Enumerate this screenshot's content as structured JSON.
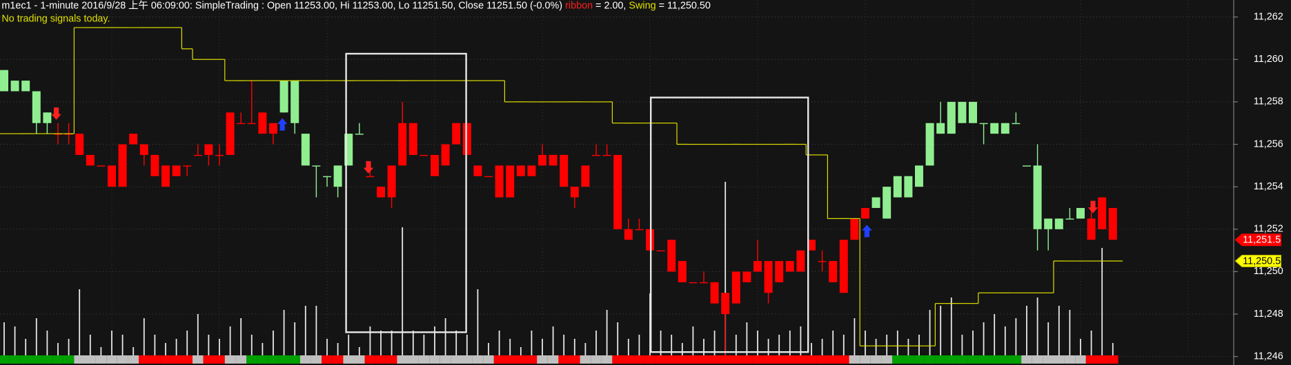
{
  "chart_data": {
    "type": "candlestick",
    "header": {
      "title": "m1ec1 - 1-minute 2016/9/28 上午 06:09:00: SimpleTrading : Open 11253.00, Hi 11253.00, Lo 11251.50, Close 11251.50 (-0.0%) ",
      "ribbon_name": "ribbon",
      "ribbon_value": " = 2.00, ",
      "swing_name": "Swing",
      "swing_value": " = 11,250.50",
      "signal_note": "No trading signals today."
    },
    "ylim": [
      11245.6,
      11262.8
    ],
    "yticks": [
      {
        "value": 11246,
        "label": "11,246"
      },
      {
        "value": 11248,
        "label": "11,248"
      },
      {
        "value": 11250,
        "label": "11,250"
      },
      {
        "value": 11252,
        "label": "11,252"
      },
      {
        "value": 11254,
        "label": "11,254"
      },
      {
        "value": 11256,
        "label": "11,256"
      },
      {
        "value": 11258,
        "label": "11,258"
      },
      {
        "value": 11260,
        "label": "11,260"
      },
      {
        "value": 11262,
        "label": "11,262"
      }
    ],
    "grid": true,
    "candles": {
      "open": [
        11258.5,
        11258.5,
        11258.5,
        11258.5,
        11257.5,
        11256.5,
        11256.5,
        11256.5,
        11255.5,
        11255,
        11255,
        11256,
        11256.5,
        11256,
        11255.5,
        11255,
        11255,
        11255,
        11255.5,
        11256,
        11255.5,
        11257.5,
        11257,
        11257,
        11257.5,
        11257,
        11257.5,
        11259,
        11256.5,
        11255,
        11254.5,
        11254,
        11255,
        11256.5,
        11254.5,
        11254,
        11255,
        11257,
        11257,
        11255.5,
        11255.5,
        11256,
        11257,
        11257,
        11255,
        11254.5,
        11255,
        11255,
        11255,
        11255,
        11255.5,
        11255.5,
        11255.5,
        11254,
        11255,
        11255.5,
        11255.5,
        11255.5,
        11252,
        11252,
        11252,
        11251,
        11251.5,
        11250.5,
        11249.5,
        11249.5,
        11249.5,
        11249,
        11250,
        11250,
        11250.5,
        11250.5,
        11250.5,
        11250.5,
        11251,
        11251.5,
        11250.5,
        11250.5,
        11251.5,
        11252.5,
        11252.5,
        11253,
        11252.5,
        11253.5,
        11253.5,
        11254,
        11255,
        11256.5,
        11256.5,
        11257,
        11257,
        11257,
        11256.5,
        11256.5,
        11257,
        11255,
        11252,
        11252,
        11252,
        11252.5,
        11252.5,
        11252.5,
        11253.5,
        11253
      ],
      "high": [
        11259.5,
        11259,
        11259,
        11258.5,
        11257.5,
        11257,
        11257,
        11256.5,
        11255.5,
        11255,
        11255,
        11256,
        11256.5,
        11256,
        11255.5,
        11255,
        11255,
        11255,
        11256,
        11256,
        11256,
        11257.5,
        11257.5,
        11259,
        11257.5,
        11257,
        11259,
        11259,
        11256.5,
        11255,
        11254.5,
        11255,
        11256.5,
        11257,
        11255,
        11254,
        11255,
        11258,
        11257,
        11255.5,
        11255.5,
        11256,
        11257,
        11257,
        11255,
        11254.5,
        11255,
        11255,
        11255,
        11255,
        11256,
        11255.5,
        11255.5,
        11254,
        11255,
        11256,
        11256,
        11255.5,
        11252.5,
        11252.5,
        11252,
        11251,
        11251.5,
        11250.5,
        11249.5,
        11250,
        11249.5,
        11249,
        11250,
        11250,
        11251.5,
        11250.5,
        11250.5,
        11250.5,
        11251,
        11251.5,
        11251,
        11250.5,
        11251.5,
        11252.5,
        11253,
        11253.5,
        11254,
        11254.5,
        11254.5,
        11255,
        11257,
        11258,
        11258,
        11258,
        11258,
        11257,
        11257,
        11257,
        11257.5,
        11255,
        11256,
        11252.5,
        11252.5,
        11253,
        11253,
        11253,
        11253.5,
        11253
      ],
      "low": [
        11258.5,
        11258.5,
        11258.5,
        11256.5,
        11256.5,
        11256,
        11256,
        11255.5,
        11255,
        11255,
        11254,
        11254,
        11256,
        11255,
        11254.5,
        11254,
        11254.5,
        11254.5,
        11255.5,
        11255,
        11255,
        11255.5,
        11257,
        11257,
        11256.5,
        11256,
        11257.5,
        11256.5,
        11255,
        11253.5,
        11254,
        11253.5,
        11255,
        11256.5,
        11254.5,
        11253.5,
        11253,
        11255,
        11255.5,
        11255.5,
        11254.5,
        11255,
        11256,
        11255.5,
        11254.5,
        11254.5,
        11253.5,
        11253.5,
        11254.5,
        11254.5,
        11255,
        11255,
        11254,
        11253,
        11254,
        11255.5,
        11255.5,
        11252,
        11251.5,
        11252,
        11251,
        11251,
        11250,
        11249.5,
        11249.5,
        11249.5,
        11248.5,
        11246,
        11248.5,
        11249.5,
        11250,
        11248.5,
        11249.5,
        11250,
        11250,
        11251,
        11250,
        11249.5,
        11249,
        11251.5,
        11252.5,
        11253,
        11252.5,
        11253.5,
        11253.5,
        11254,
        11255,
        11256.5,
        11256.5,
        11257,
        11257,
        11256,
        11256.5,
        11256.5,
        11257,
        11255,
        11251,
        11251,
        11252,
        11252.5,
        11252.5,
        11251.5,
        11252,
        11251.5
      ],
      "close": [
        11259.5,
        11259,
        11259,
        11257,
        11257,
        11256.5,
        11256.5,
        11255.5,
        11255,
        11255,
        11254,
        11254,
        11256,
        11255.5,
        11254.5,
        11254,
        11254.5,
        11255,
        11255.5,
        11255.5,
        11255.5,
        11255.5,
        11257,
        11257,
        11256.5,
        11256.5,
        11259,
        11257,
        11255,
        11255,
        11254.5,
        11255,
        11256.5,
        11256.5,
        11254.5,
        11253.5,
        11253.5,
        11255,
        11255.5,
        11255.5,
        11254.5,
        11255,
        11256,
        11255.5,
        11254.5,
        11254.5,
        11253.5,
        11253.5,
        11254.5,
        11254.5,
        11255,
        11255,
        11254,
        11253.5,
        11254,
        11255.5,
        11255.5,
        11252,
        11251.5,
        11252,
        11251,
        11251,
        11250,
        11249.5,
        11249.5,
        11249.5,
        11248.5,
        11248,
        11248.5,
        11249.5,
        11250,
        11249,
        11249.5,
        11250,
        11250,
        11251,
        11250.5,
        11249.5,
        11249,
        11251.5,
        11253,
        11253.5,
        11254,
        11254.5,
        11254.5,
        11255,
        11257,
        11257,
        11258,
        11258,
        11258,
        11257,
        11257,
        11257,
        11257,
        11255,
        11255,
        11252.5,
        11252.5,
        11252.5,
        11253,
        11251.5,
        11252,
        11251.5
      ]
    },
    "candle_state": "gggggrrrrrrrrrrrrrrrrrrrrrggggggggrrrrrrrrrrrrrrrrrrrrrrrrrrrrrrrrrrrrrrrrrrrrrrrggggggggggggggggggggrrr",
    "candle_colors": {
      "g": "#90ee90",
      "r": "#ff0000"
    },
    "ribbon_state": "gggggggwwwwwwrrrrrwrrwwgggggwwrrwwrrrwwwwwwwwwrrrrwwrrwwwrrrrrrrrrrrrrrrrrrrrrrwwwwggggggggggggwwwwwwrrr",
    "ribbon_colors": {
      "g": "#00a000",
      "w": "#c0c0c0",
      "r": "#ff0000"
    },
    "volume": [
      40,
      35,
      20,
      45,
      30,
      15,
      20,
      80,
      25,
      10,
      30,
      25,
      10,
      45,
      25,
      15,
      20,
      30,
      50,
      25,
      20,
      35,
      45,
      25,
      15,
      30,
      55,
      40,
      60,
      60,
      20,
      15,
      25,
      10,
      35,
      30,
      30,
      155,
      30,
      25,
      35,
      45,
      30,
      25,
      80,
      15,
      30,
      20,
      10,
      30,
      20,
      35,
      25,
      20,
      15,
      30,
      55,
      40,
      20,
      25,
      75,
      30,
      25,
      15,
      35,
      20,
      30,
      210,
      25,
      40,
      30,
      20,
      25,
      30,
      35,
      15,
      20,
      30,
      25,
      45,
      30,
      20,
      25,
      30,
      20,
      25,
      55,
      60,
      70,
      25,
      30,
      40,
      50,
      35,
      45,
      60,
      70,
      40,
      60,
      55,
      20,
      30,
      130,
      15
    ],
    "volume_color": "#e8e8e8",
    "swing": [
      11256.5,
      11256.5,
      11256.5,
      11256.5,
      11256.5,
      11256.5,
      11256.5,
      11261.5,
      11261.5,
      11261.5,
      11261.5,
      11261.5,
      11261.5,
      11261.5,
      11261.5,
      11261.5,
      11261.5,
      11260.5,
      11260,
      11260,
      11260,
      11259,
      11259,
      11259,
      11259,
      11259,
      11259,
      11259,
      11259,
      11259,
      11259,
      11259,
      11259,
      11259,
      11259,
      11259,
      11259,
      11259,
      11259,
      11259,
      11259,
      11259,
      11259,
      11259,
      11259,
      11259,
      11259,
      11258,
      11258,
      11258,
      11258,
      11258,
      11258,
      11258,
      11258,
      11258,
      11258,
      11257,
      11257,
      11257,
      11257,
      11257,
      11257,
      11256,
      11256,
      11256,
      11256,
      11256,
      11256,
      11256,
      11256,
      11256,
      11256,
      11256,
      11256,
      11255.5,
      11255.5,
      11252.5,
      11252.5,
      11252.5,
      11246.5,
      11246.5,
      11246.5,
      11246.5,
      11246.5,
      11246.5,
      11246.5,
      11248.5,
      11248.5,
      11248.5,
      11248.5,
      11249,
      11249,
      11249,
      11249,
      11249,
      11249,
      11249,
      11250.5,
      11250.5,
      11250.5,
      11250.5,
      11250.5,
      11250.5
    ],
    "swing_color": "#e0e000",
    "last_price": {
      "value": 11251.5,
      "label": "11,251.5"
    },
    "swing_price": {
      "value": 11250.5,
      "label": "11,250.5"
    }
  }
}
